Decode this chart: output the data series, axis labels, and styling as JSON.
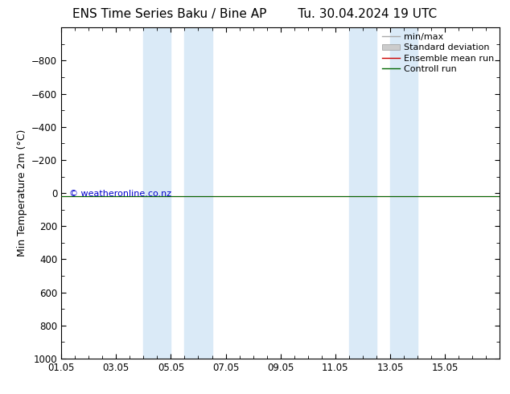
{
  "title_left": "ENS Time Series Baku / Bine AP",
  "title_right": "Tu. 30.04.2024 19 UTC",
  "ylabel": "Min Temperature 2m (°C)",
  "xlim": [
    0.0,
    16.0
  ],
  "ylim": [
    1000,
    -1000
  ],
  "yticks": [
    -800,
    -600,
    -400,
    -200,
    0,
    200,
    400,
    600,
    800,
    1000
  ],
  "xtick_labels": [
    "01.05",
    "03.05",
    "05.05",
    "07.05",
    "09.05",
    "11.05",
    "13.05",
    "15.05"
  ],
  "xtick_positions": [
    0,
    2,
    4,
    6,
    8,
    10,
    12,
    14
  ],
  "shaded_regions": [
    [
      3.0,
      4.0
    ],
    [
      4.5,
      5.5
    ],
    [
      10.5,
      11.5
    ],
    [
      12.0,
      13.0
    ]
  ],
  "shaded_color": "#daeaf7",
  "flat_line_y": 20,
  "flat_line_color_ensemble": "#cc0000",
  "flat_line_color_control": "#006600",
  "watermark": "© weatheronline.co.nz",
  "watermark_color": "#0000cc",
  "background_color": "#ffffff",
  "legend_items": [
    {
      "label": "min/max",
      "color": "#aaaaaa",
      "lw": 1.0
    },
    {
      "label": "Standard deviation",
      "color": "#cccccc",
      "lw": 6
    },
    {
      "label": "Ensemble mean run",
      "color": "#cc0000",
      "lw": 1.0
    },
    {
      "label": "Controll run",
      "color": "#006600",
      "lw": 1.0
    }
  ],
  "title_fontsize": 11,
  "axis_label_fontsize": 9,
  "tick_fontsize": 8.5,
  "watermark_fontsize": 8,
  "legend_fontsize": 8
}
